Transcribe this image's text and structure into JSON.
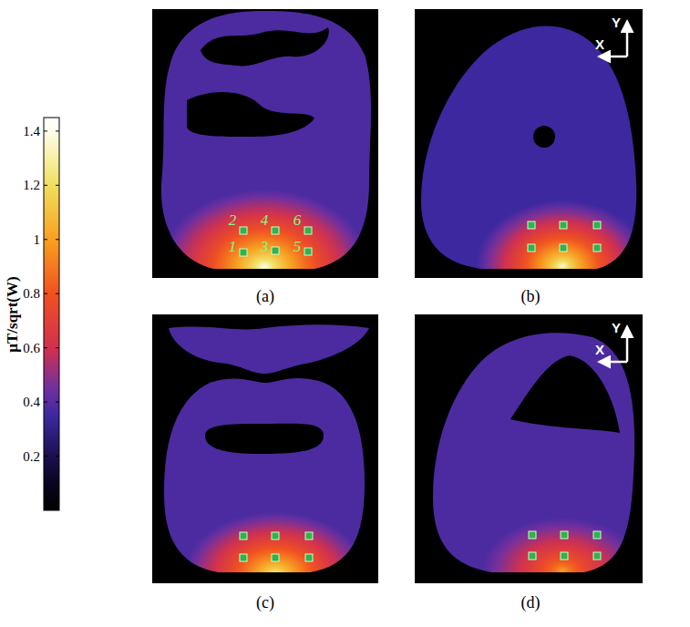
{
  "chart_data": {
    "type": "heatmap",
    "colorbar": {
      "label": "μT/sqrt(W)",
      "range": [
        0,
        1.45
      ],
      "ticks": [
        0.2,
        0.4,
        0.6,
        0.8,
        1,
        1.2,
        1.4
      ]
    },
    "panels": [
      {
        "label": "(a)",
        "background": 0.38,
        "peak": 1.4,
        "roi_labels": [
          "1",
          "2",
          "3",
          "4",
          "5",
          "6"
        ]
      },
      {
        "label": "(b)",
        "background": 0.35,
        "peak": 1.35,
        "direction_labels": [
          "X",
          "Y"
        ]
      },
      {
        "label": "(c)",
        "background": 0.38,
        "peak": 1.3
      },
      {
        "label": "(d)",
        "background": 0.38,
        "peak": 1.0,
        "direction_labels": [
          "X",
          "Y"
        ]
      }
    ]
  }
}
